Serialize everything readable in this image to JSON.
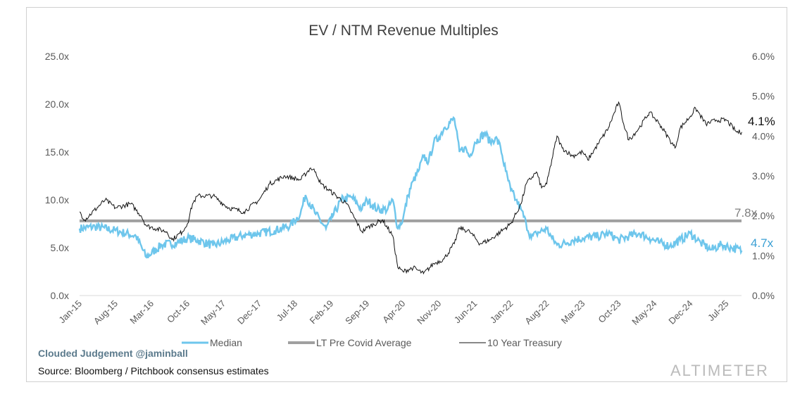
{
  "chart_data": {
    "type": "line",
    "title": "EV / NTM Revenue Multiples",
    "x_tick_labels": [
      "Jan-15",
      "Aug-15",
      "Mar-16",
      "Oct-16",
      "May-17",
      "Dec-17",
      "Jul-18",
      "Feb-19",
      "Sep-19",
      "Apr-20",
      "Nov-20",
      "Jun-21",
      "Jan-22",
      "Aug-22",
      "Mar-23",
      "Oct-23",
      "May-24",
      "Dec-24",
      "Jul-25"
    ],
    "y_left": {
      "ticks": [
        "0.0x",
        "5.0x",
        "10.0x",
        "15.0x",
        "20.0x",
        "25.0x"
      ],
      "range": [
        0,
        25
      ]
    },
    "y_right": {
      "ticks": [
        "0.0%",
        "1.0%",
        "2.0%",
        "3.0%",
        "4.0%",
        "5.0%",
        "6.0%"
      ],
      "range": [
        0,
        6
      ]
    },
    "grid": false,
    "legend_placement": "bottom",
    "series": [
      {
        "name": "Median",
        "axis": "left",
        "color": "#6ec6ec",
        "end_label": "4.7x",
        "points": [
          [
            "2015-01",
            7.0
          ],
          [
            "2015-04",
            7.2
          ],
          [
            "2015-08",
            6.8
          ],
          [
            "2015-12",
            6.2
          ],
          [
            "2016-02",
            4.0
          ],
          [
            "2016-05",
            5.3
          ],
          [
            "2016-08",
            5.5
          ],
          [
            "2016-10",
            6.0
          ],
          [
            "2016-12",
            5.8
          ],
          [
            "2017-03",
            5.2
          ],
          [
            "2017-06",
            5.8
          ],
          [
            "2017-09",
            6.3
          ],
          [
            "2017-12",
            6.5
          ],
          [
            "2018-03",
            6.8
          ],
          [
            "2018-06",
            7.3
          ],
          [
            "2018-08",
            8.5
          ],
          [
            "2018-09",
            10.5
          ],
          [
            "2018-11",
            8.5
          ],
          [
            "2019-01",
            7.0
          ],
          [
            "2019-02",
            8.0
          ],
          [
            "2019-04",
            10.0
          ],
          [
            "2019-06",
            10.3
          ],
          [
            "2019-08",
            9.0
          ],
          [
            "2019-09",
            10.0
          ],
          [
            "2019-11",
            9.0
          ],
          [
            "2020-01",
            9.0
          ],
          [
            "2020-02",
            10.0
          ],
          [
            "2020-03",
            7.0
          ],
          [
            "2020-04",
            8.0
          ],
          [
            "2020-05",
            10.5
          ],
          [
            "2020-06",
            12.0
          ],
          [
            "2020-07",
            13.0
          ],
          [
            "2020-08",
            14.5
          ],
          [
            "2020-09",
            14.0
          ],
          [
            "2020-10",
            16.0
          ],
          [
            "2020-11",
            16.5
          ],
          [
            "2020-12",
            17.5
          ],
          [
            "2021-02",
            18.5
          ],
          [
            "2021-03",
            15.0
          ],
          [
            "2021-04",
            15.5
          ],
          [
            "2021-05",
            14.5
          ],
          [
            "2021-06",
            16.0
          ],
          [
            "2021-08",
            17.0
          ],
          [
            "2021-09",
            16.0
          ],
          [
            "2021-10",
            16.5
          ],
          [
            "2021-11",
            15.5
          ],
          [
            "2021-12",
            13.0
          ],
          [
            "2022-01",
            11.0
          ],
          [
            "2022-02",
            10.0
          ],
          [
            "2022-03",
            9.0
          ],
          [
            "2022-04",
            7.5
          ],
          [
            "2022-05",
            6.0
          ],
          [
            "2022-06",
            6.5
          ],
          [
            "2022-08",
            7.0
          ],
          [
            "2022-09",
            6.0
          ],
          [
            "2022-10",
            5.3
          ],
          [
            "2022-12",
            5.5
          ],
          [
            "2023-01",
            5.8
          ],
          [
            "2023-03",
            6.0
          ],
          [
            "2023-06",
            6.2
          ],
          [
            "2023-08",
            6.5
          ],
          [
            "2023-10",
            5.8
          ],
          [
            "2023-12",
            6.2
          ],
          [
            "2024-02",
            6.5
          ],
          [
            "2024-04",
            6.0
          ],
          [
            "2024-06",
            5.5
          ],
          [
            "2024-08",
            5.2
          ],
          [
            "2024-10",
            5.8
          ],
          [
            "2024-12",
            6.5
          ],
          [
            "2025-02",
            5.5
          ],
          [
            "2025-04",
            4.8
          ],
          [
            "2025-06",
            5.3
          ],
          [
            "2025-08",
            5.0
          ],
          [
            "2025-10",
            4.7
          ]
        ]
      },
      {
        "name": "LT Pre Covid Average",
        "axis": "left",
        "color": "#a0a0a0",
        "end_label": "7.8x",
        "value": 7.8
      },
      {
        "name": "10 Year Treasury",
        "axis": "right",
        "color": "#111111",
        "end_label": "4.1%",
        "points": [
          [
            "2015-01",
            2.1
          ],
          [
            "2015-02",
            1.9
          ],
          [
            "2015-06",
            2.4
          ],
          [
            "2015-08",
            2.2
          ],
          [
            "2015-11",
            2.3
          ],
          [
            "2016-01",
            2.0
          ],
          [
            "2016-02",
            1.75
          ],
          [
            "2016-06",
            1.6
          ],
          [
            "2016-07",
            1.4
          ],
          [
            "2016-09",
            1.6
          ],
          [
            "2016-10",
            1.8
          ],
          [
            "2016-11",
            2.3
          ],
          [
            "2016-12",
            2.5
          ],
          [
            "2017-03",
            2.5
          ],
          [
            "2017-06",
            2.2
          ],
          [
            "2017-09",
            2.1
          ],
          [
            "2017-12",
            2.4
          ],
          [
            "2018-02",
            2.8
          ],
          [
            "2018-05",
            3.0
          ],
          [
            "2018-08",
            2.9
          ],
          [
            "2018-10",
            3.2
          ],
          [
            "2018-11",
            3.1
          ],
          [
            "2018-12",
            2.8
          ],
          [
            "2019-03",
            2.5
          ],
          [
            "2019-05",
            2.3
          ],
          [
            "2019-08",
            1.6
          ],
          [
            "2019-09",
            1.7
          ],
          [
            "2019-12",
            1.9
          ],
          [
            "2020-02",
            1.5
          ],
          [
            "2020-03",
            0.7
          ],
          [
            "2020-04",
            0.6
          ],
          [
            "2020-06",
            0.7
          ],
          [
            "2020-08",
            0.55
          ],
          [
            "2020-10",
            0.8
          ],
          [
            "2020-12",
            0.92
          ],
          [
            "2021-02",
            1.3
          ],
          [
            "2021-03",
            1.7
          ],
          [
            "2021-05",
            1.6
          ],
          [
            "2021-07",
            1.3
          ],
          [
            "2021-09",
            1.4
          ],
          [
            "2021-11",
            1.6
          ],
          [
            "2022-01",
            1.8
          ],
          [
            "2022-03",
            2.3
          ],
          [
            "2022-04",
            2.8
          ],
          [
            "2022-06",
            3.1
          ],
          [
            "2022-07",
            2.7
          ],
          [
            "2022-08",
            2.8
          ],
          [
            "2022-10",
            4.0
          ],
          [
            "2022-11",
            3.7
          ],
          [
            "2023-01",
            3.5
          ],
          [
            "2023-03",
            3.6
          ],
          [
            "2023-04",
            3.4
          ],
          [
            "2023-06",
            3.8
          ],
          [
            "2023-08",
            4.2
          ],
          [
            "2023-10",
            4.85
          ],
          [
            "2023-11",
            4.3
          ],
          [
            "2023-12",
            3.9
          ],
          [
            "2024-02",
            4.2
          ],
          [
            "2024-04",
            4.6
          ],
          [
            "2024-06",
            4.3
          ],
          [
            "2024-08",
            3.9
          ],
          [
            "2024-09",
            3.7
          ],
          [
            "2024-10",
            4.2
          ],
          [
            "2024-12",
            4.5
          ],
          [
            "2025-01",
            4.7
          ],
          [
            "2025-03",
            4.3
          ],
          [
            "2025-05",
            4.4
          ],
          [
            "2025-07",
            4.4
          ],
          [
            "2025-09",
            4.1
          ],
          [
            "2025-10",
            4.1
          ]
        ]
      }
    ]
  },
  "footer": {
    "credit": "Clouded Judgement @jaminball",
    "source": "Source: Bloomberg / Pitchbook consensus estimates",
    "watermark": "ALTIMETER"
  }
}
